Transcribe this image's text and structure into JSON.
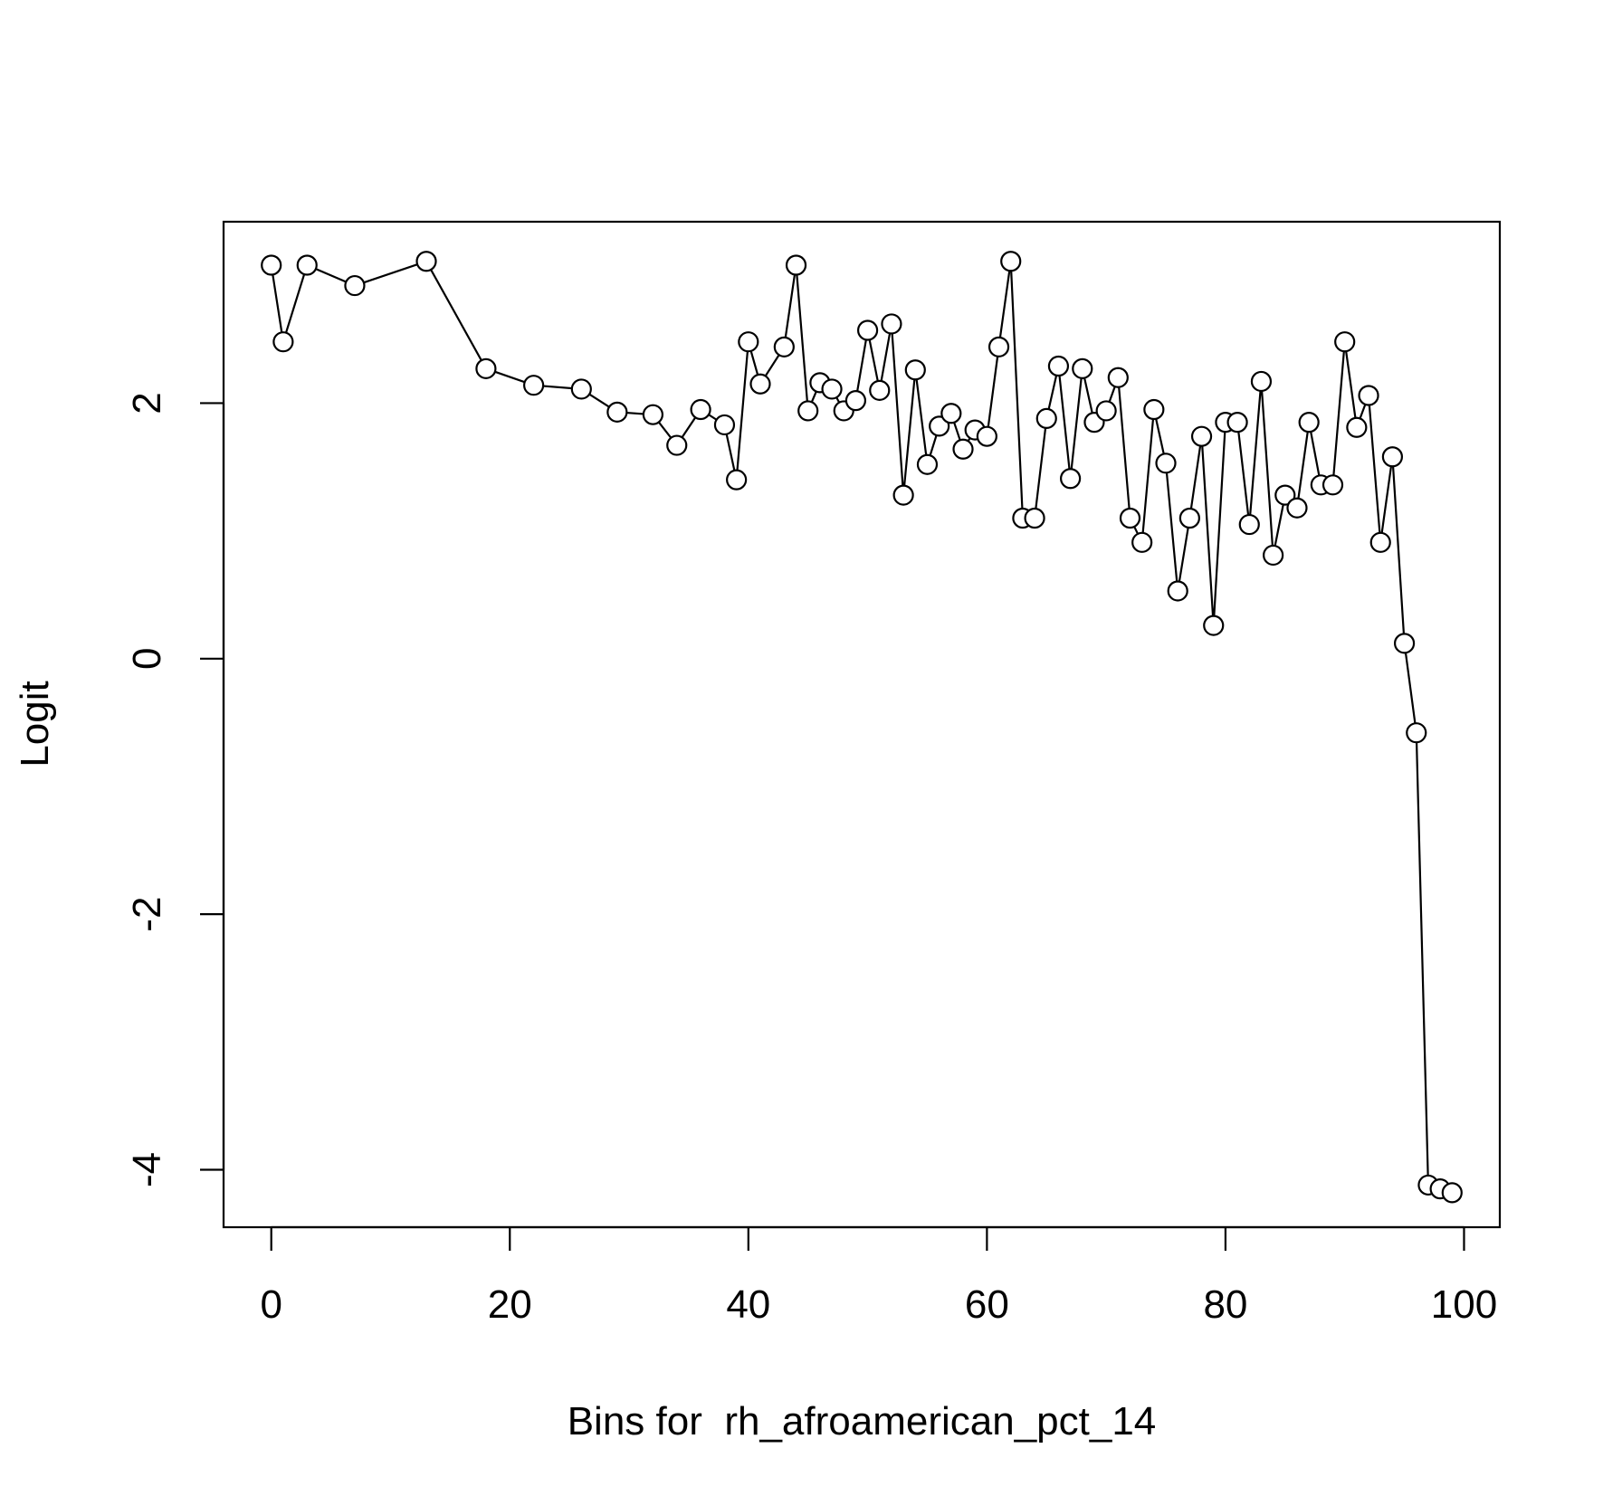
{
  "chart_data": {
    "type": "line",
    "title": "",
    "xlabel": "Bins for  rh_afroamerican_pct_14",
    "ylabel": "Logit",
    "xlim": [
      -4,
      103
    ],
    "ylim": [
      -4.45,
      3.42
    ],
    "xticks": [
      0,
      20,
      40,
      60,
      80,
      100
    ],
    "yticks": [
      -4,
      -2,
      0,
      2
    ],
    "grid": false,
    "legend": "none",
    "marker": "open-circle",
    "line_color": "#000000",
    "x": [
      0,
      1,
      3,
      7,
      13,
      18,
      22,
      26,
      29,
      32,
      34,
      36,
      38,
      39,
      40,
      41,
      43,
      44,
      45,
      46,
      47,
      48,
      49,
      50,
      51,
      52,
      53,
      54,
      55,
      56,
      57,
      58,
      59,
      60,
      61,
      62,
      63,
      64,
      65,
      66,
      67,
      68,
      69,
      70,
      71,
      72,
      73,
      74,
      75,
      76,
      77,
      78,
      79,
      80,
      81,
      82,
      83,
      84,
      85,
      86,
      87,
      88,
      89,
      90,
      91,
      92,
      93,
      94,
      95,
      96,
      97,
      98,
      99
    ],
    "y": [
      3.08,
      2.48,
      3.08,
      2.92,
      3.11,
      2.27,
      2.14,
      2.11,
      1.93,
      1.91,
      1.67,
      1.95,
      1.83,
      1.4,
      2.48,
      2.15,
      2.44,
      3.08,
      1.94,
      2.16,
      2.11,
      1.94,
      2.02,
      2.57,
      2.1,
      2.62,
      1.28,
      2.26,
      1.52,
      1.82,
      1.92,
      1.64,
      1.79,
      1.74,
      2.44,
      3.11,
      1.1,
      1.1,
      1.88,
      2.29,
      1.41,
      2.27,
      1.85,
      1.94,
      2.2,
      1.1,
      0.91,
      1.95,
      1.53,
      0.53,
      1.1,
      1.74,
      0.26,
      1.85,
      1.85,
      1.05,
      2.17,
      0.81,
      1.28,
      1.18,
      1.85,
      1.36,
      1.36,
      2.48,
      1.81,
      2.06,
      0.91,
      1.58,
      0.12,
      -0.58,
      -4.12,
      -4.15,
      -4.18
    ]
  }
}
